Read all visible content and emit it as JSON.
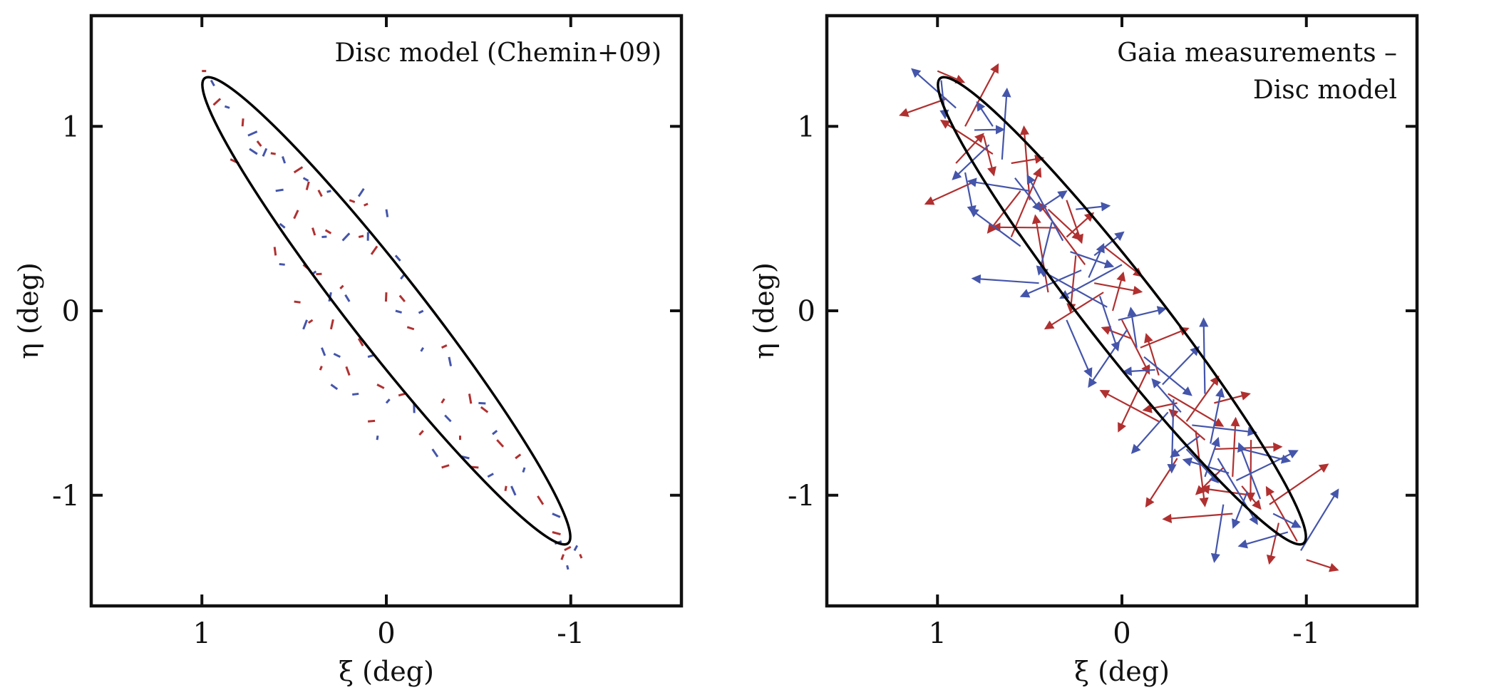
{
  "chart_data": [
    {
      "type": "scatter",
      "annotation": [
        "Disc model (Chemin+09)"
      ],
      "xlabel": "ξ (deg)",
      "ylabel": "η (deg)",
      "xlim": [
        1.6,
        -1.6
      ],
      "ylim": [
        -1.6,
        1.6
      ],
      "xticks": [
        1,
        0,
        -1
      ],
      "xtick_labels": [
        "1",
        "0",
        "-1"
      ],
      "yticks": [
        1,
        0,
        -1
      ],
      "ytick_labels": [
        "1",
        "0",
        "-1"
      ],
      "grid": false,
      "ellipse": {
        "center": [
          0,
          0
        ],
        "semi_major": 1.6,
        "semi_minor": 0.2,
        "angle_deg": 52,
        "color": "#000000"
      },
      "series": [
        {
          "color": "#b03030",
          "marker": "short vector",
          "points": [
            [
              1.0,
              1.3
            ],
            [
              0.9,
              1.15
            ],
            [
              0.78,
              1.0
            ],
            [
              0.7,
              0.92
            ],
            [
              0.6,
              0.85
            ],
            [
              0.5,
              0.75
            ],
            [
              0.42,
              0.7
            ],
            [
              0.35,
              0.62
            ],
            [
              0.2,
              0.6
            ],
            [
              0.1,
              0.58
            ],
            [
              0.5,
              0.5
            ],
            [
              0.4,
              0.45
            ],
            [
              0.3,
              0.42
            ],
            [
              0.15,
              0.4
            ],
            [
              0.05,
              0.35
            ],
            [
              0.6,
              0.3
            ],
            [
              0.45,
              0.25
            ],
            [
              0.35,
              0.2
            ],
            [
              0.25,
              0.12
            ],
            [
              0.0,
              0.1
            ],
            [
              -0.1,
              0.05
            ],
            [
              0.5,
              0.05
            ],
            [
              0.4,
              -0.05
            ],
            [
              0.3,
              -0.1
            ],
            [
              0.15,
              -0.15
            ],
            [
              -0.15,
              -0.1
            ],
            [
              -0.3,
              -0.2
            ],
            [
              0.35,
              -0.3
            ],
            [
              0.2,
              -0.35
            ],
            [
              0.05,
              -0.4
            ],
            [
              -0.1,
              -0.45
            ],
            [
              -0.3,
              -0.5
            ],
            [
              -0.45,
              -0.45
            ],
            [
              -0.55,
              -0.55
            ],
            [
              0.1,
              -0.6
            ],
            [
              -0.2,
              -0.65
            ],
            [
              -0.4,
              -0.7
            ],
            [
              -0.6,
              -0.7
            ],
            [
              -0.5,
              -0.85
            ],
            [
              -0.7,
              -0.8
            ],
            [
              -0.65,
              -0.95
            ],
            [
              -0.85,
              -1.05
            ],
            [
              -0.9,
              -1.2
            ],
            [
              -1.0,
              -1.28
            ],
            [
              -0.95,
              -1.35
            ],
            [
              -1.05,
              -1.32
            ],
            [
              0.8,
              0.8
            ],
            [
              -0.3,
              -0.85
            ]
          ]
        },
        {
          "color": "#4455aa",
          "marker": "short vector",
          "points": [
            [
              0.95,
              1.25
            ],
            [
              0.85,
              1.1
            ],
            [
              0.75,
              0.95
            ],
            [
              0.65,
              0.88
            ],
            [
              0.55,
              0.8
            ],
            [
              0.45,
              0.72
            ],
            [
              0.3,
              0.65
            ],
            [
              0.15,
              0.62
            ],
            [
              0.0,
              0.55
            ],
            [
              0.55,
              0.45
            ],
            [
              0.35,
              0.4
            ],
            [
              0.2,
              0.42
            ],
            [
              0.1,
              0.38
            ],
            [
              -0.05,
              0.3
            ],
            [
              0.55,
              0.25
            ],
            [
              0.4,
              0.2
            ],
            [
              0.3,
              0.1
            ],
            [
              0.2,
              0.05
            ],
            [
              -0.05,
              0.0
            ],
            [
              -0.2,
              0.0
            ],
            [
              0.45,
              -0.1
            ],
            [
              0.35,
              -0.2
            ],
            [
              0.25,
              -0.25
            ],
            [
              0.1,
              -0.25
            ],
            [
              -0.2,
              -0.2
            ],
            [
              -0.35,
              -0.3
            ],
            [
              0.3,
              -0.4
            ],
            [
              0.15,
              -0.45
            ],
            [
              0.0,
              -0.5
            ],
            [
              -0.15,
              -0.5
            ],
            [
              -0.35,
              -0.6
            ],
            [
              -0.5,
              -0.5
            ],
            [
              -0.6,
              -0.65
            ],
            [
              0.05,
              -0.7
            ],
            [
              -0.25,
              -0.75
            ],
            [
              -0.45,
              -0.8
            ],
            [
              -0.55,
              -0.9
            ],
            [
              -0.75,
              -0.85
            ],
            [
              -0.7,
              -1.0
            ],
            [
              -0.9,
              -1.1
            ],
            [
              -0.95,
              -1.25
            ],
            [
              -1.02,
              -1.3
            ],
            [
              -0.98,
              -1.38
            ],
            [
              0.7,
              0.85
            ],
            [
              0.6,
              0.65
            ],
            [
              -0.1,
              0.2
            ]
          ]
        }
      ]
    },
    {
      "type": "scatter",
      "annotation": [
        "Gaia measurements –",
        "Disc model"
      ],
      "xlabel": "ξ (deg)",
      "ylabel": "η (deg)",
      "xlim": [
        1.6,
        -1.6
      ],
      "ylim": [
        -1.6,
        1.6
      ],
      "xticks": [
        1,
        0,
        -1
      ],
      "xtick_labels": [
        "1",
        "0",
        "-1"
      ],
      "yticks": [
        1,
        0,
        -1
      ],
      "ytick_labels": [
        "1",
        "0",
        "-1"
      ],
      "grid": false,
      "ellipse": {
        "center": [
          0,
          0
        ],
        "semi_major": 1.6,
        "semi_minor": 0.2,
        "angle_deg": 52,
        "color": "#000000"
      },
      "series": [
        {
          "color": "#b03030",
          "marker": "vector",
          "points": [
            [
              1.0,
              1.3
            ],
            [
              0.95,
              1.15
            ],
            [
              0.85,
              1.0
            ],
            [
              0.75,
              0.95
            ],
            [
              0.7,
              0.85
            ],
            [
              0.6,
              0.8
            ],
            [
              0.55,
              0.65
            ],
            [
              0.5,
              0.6
            ],
            [
              0.4,
              0.55
            ],
            [
              0.35,
              0.45
            ],
            [
              0.3,
              0.4
            ],
            [
              0.25,
              0.3
            ],
            [
              0.2,
              0.25
            ],
            [
              0.15,
              0.15
            ],
            [
              0.1,
              0.1
            ],
            [
              0.05,
              0.0
            ],
            [
              0.0,
              -0.05
            ],
            [
              -0.05,
              -0.15
            ],
            [
              -0.1,
              -0.2
            ],
            [
              -0.15,
              -0.3
            ],
            [
              -0.2,
              -0.35
            ],
            [
              -0.25,
              -0.45
            ],
            [
              -0.3,
              -0.5
            ],
            [
              -0.35,
              -0.6
            ],
            [
              -0.4,
              -0.65
            ],
            [
              -0.45,
              -0.7
            ],
            [
              -0.5,
              -0.75
            ],
            [
              -0.55,
              -0.85
            ],
            [
              -0.6,
              -0.9
            ],
            [
              -0.65,
              -0.95
            ],
            [
              -0.7,
              -1.0
            ],
            [
              -0.8,
              -1.05
            ],
            [
              -0.85,
              -1.15
            ],
            [
              -0.95,
              -1.25
            ],
            [
              -1.0,
              -1.35
            ],
            [
              0.8,
              0.7
            ],
            [
              0.6,
              0.4
            ],
            [
              0.3,
              0.6
            ],
            [
              -0.2,
              -0.6
            ],
            [
              -0.5,
              -0.5
            ],
            [
              -0.3,
              -0.8
            ],
            [
              0.4,
              0.1
            ],
            [
              0.1,
              0.35
            ],
            [
              -0.6,
              -1.1
            ],
            [
              0.9,
              0.8
            ],
            [
              -0.7,
              -0.7
            ]
          ]
        },
        {
          "color": "#4455aa",
          "marker": "vector",
          "points": [
            [
              0.98,
              1.25
            ],
            [
              0.9,
              1.1
            ],
            [
              0.8,
              0.98
            ],
            [
              0.72,
              0.9
            ],
            [
              0.65,
              0.82
            ],
            [
              0.58,
              0.72
            ],
            [
              0.5,
              0.65
            ],
            [
              0.45,
              0.55
            ],
            [
              0.38,
              0.48
            ],
            [
              0.32,
              0.38
            ],
            [
              0.28,
              0.32
            ],
            [
              0.22,
              0.22
            ],
            [
              0.18,
              0.18
            ],
            [
              0.12,
              0.08
            ],
            [
              0.08,
              0.02
            ],
            [
              0.02,
              -0.05
            ],
            [
              -0.03,
              -0.1
            ],
            [
              -0.08,
              -0.2
            ],
            [
              -0.12,
              -0.25
            ],
            [
              -0.18,
              -0.32
            ],
            [
              -0.22,
              -0.4
            ],
            [
              -0.28,
              -0.48
            ],
            [
              -0.32,
              -0.55
            ],
            [
              -0.38,
              -0.62
            ],
            [
              -0.42,
              -0.68
            ],
            [
              -0.48,
              -0.72
            ],
            [
              -0.52,
              -0.8
            ],
            [
              -0.58,
              -0.88
            ],
            [
              -0.62,
              -0.92
            ],
            [
              -0.68,
              -0.98
            ],
            [
              -0.75,
              -1.02
            ],
            [
              -0.82,
              -1.1
            ],
            [
              -0.9,
              -1.2
            ],
            [
              -0.97,
              -1.3
            ],
            [
              0.85,
              0.75
            ],
            [
              0.55,
              0.35
            ],
            [
              0.25,
              0.55
            ],
            [
              -0.25,
              -0.55
            ],
            [
              -0.45,
              -0.45
            ],
            [
              -0.35,
              -0.75
            ],
            [
              0.45,
              0.15
            ],
            [
              0.15,
              0.3
            ],
            [
              -0.55,
              -1.05
            ],
            [
              0.7,
              1.0
            ],
            [
              -0.65,
              -0.75
            ],
            [
              0.0,
              0.25
            ],
            [
              -0.45,
              -0.9
            ],
            [
              0.3,
              -0.05
            ]
          ]
        }
      ]
    }
  ]
}
